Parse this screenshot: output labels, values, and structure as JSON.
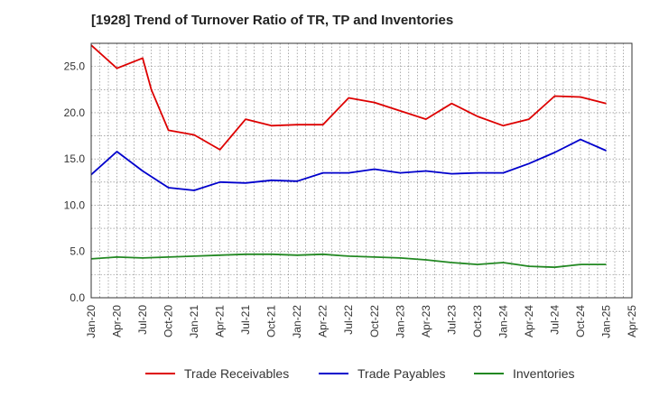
{
  "chart_data": {
    "type": "line",
    "title": "[1928]  Trend of Turnover Ratio of TR, TP and Inventories",
    "xlabel": "",
    "ylabel": "",
    "ylim": [
      0,
      27.5
    ],
    "yticks": [
      0.0,
      5.0,
      10.0,
      15.0,
      20.0,
      25.0
    ],
    "ytick_labels": [
      "0.0",
      "5.0",
      "10.0",
      "15.0",
      "20.0",
      "25.0"
    ],
    "xtick_labels": [
      "Jan-20",
      "Apr-20",
      "Jul-20",
      "Oct-20",
      "Jan-21",
      "Apr-21",
      "Jul-21",
      "Oct-21",
      "Jan-22",
      "Apr-22",
      "Jul-22",
      "Oct-22",
      "Jan-23",
      "Apr-23",
      "Jul-23",
      "Oct-23",
      "Jan-24",
      "Apr-24",
      "Jul-24",
      "Oct-24",
      "Jan-25",
      "Apr-25"
    ],
    "x": [
      "Jan-20",
      "Apr-20",
      "Jul-20",
      "Aug-20",
      "Oct-20",
      "Jan-21",
      "Apr-21",
      "Jul-21",
      "Oct-21",
      "Jan-22",
      "Apr-22",
      "Jul-22",
      "Oct-22",
      "Jan-23",
      "Apr-23",
      "Jul-23",
      "Oct-23",
      "Jan-24",
      "Apr-24",
      "Jul-24",
      "Oct-24",
      "Jan-25"
    ],
    "grid": true,
    "legend_position": "bottom",
    "series": [
      {
        "name": "Trade Receivables",
        "color": "#dd0000",
        "values": [
          27.3,
          24.8,
          25.9,
          22.5,
          18.1,
          17.6,
          16.0,
          19.3,
          18.6,
          18.7,
          18.7,
          21.6,
          21.1,
          20.2,
          19.3,
          21.0,
          19.6,
          18.6,
          19.3,
          21.8,
          21.7,
          21.0
        ]
      },
      {
        "name": "Trade Payables",
        "color": "#0000cc",
        "values": [
          13.3,
          15.8,
          13.7,
          null,
          11.9,
          11.6,
          12.5,
          12.4,
          12.7,
          12.6,
          13.5,
          13.5,
          13.9,
          13.5,
          13.7,
          13.4,
          13.5,
          13.5,
          14.5,
          15.7,
          17.1,
          15.9
        ]
      },
      {
        "name": "Inventories",
        "color": "#228822",
        "values": [
          4.2,
          4.4,
          4.3,
          null,
          4.4,
          4.5,
          4.6,
          4.7,
          4.7,
          4.6,
          4.7,
          4.5,
          4.4,
          4.3,
          4.1,
          3.8,
          3.6,
          3.8,
          3.4,
          3.3,
          3.6,
          3.6
        ]
      }
    ]
  }
}
